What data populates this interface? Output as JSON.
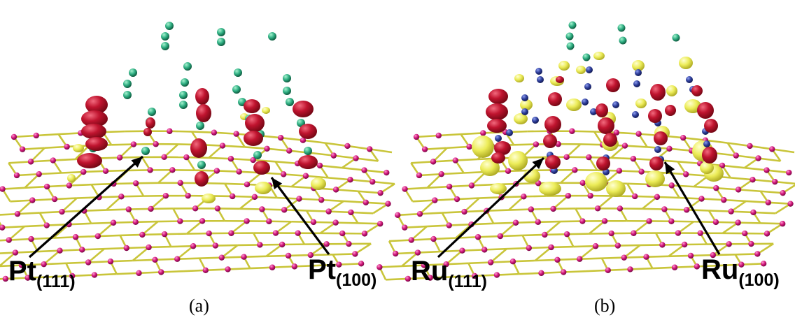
{
  "panels": [
    {
      "caption": "(a)",
      "labels": [
        {
          "symbol": "Pt",
          "subscript": "(111)"
        },
        {
          "symbol": "Pt",
          "subscript": "(100)"
        }
      ]
    },
    {
      "caption": "(b)",
      "labels": [
        {
          "symbol": "Ru",
          "subscript": "(111)"
        },
        {
          "symbol": "Ru",
          "subscript": "(100)"
        }
      ]
    }
  ],
  "colors": {
    "carbon_atom": "#d0157a",
    "carbon_bond": "#c9c53a",
    "metal_atom_pt": "#2eae82",
    "metal_atom_ru": "#2e3e9a",
    "density_positive": "#b8102c",
    "density_negative": "#e8e84a"
  }
}
